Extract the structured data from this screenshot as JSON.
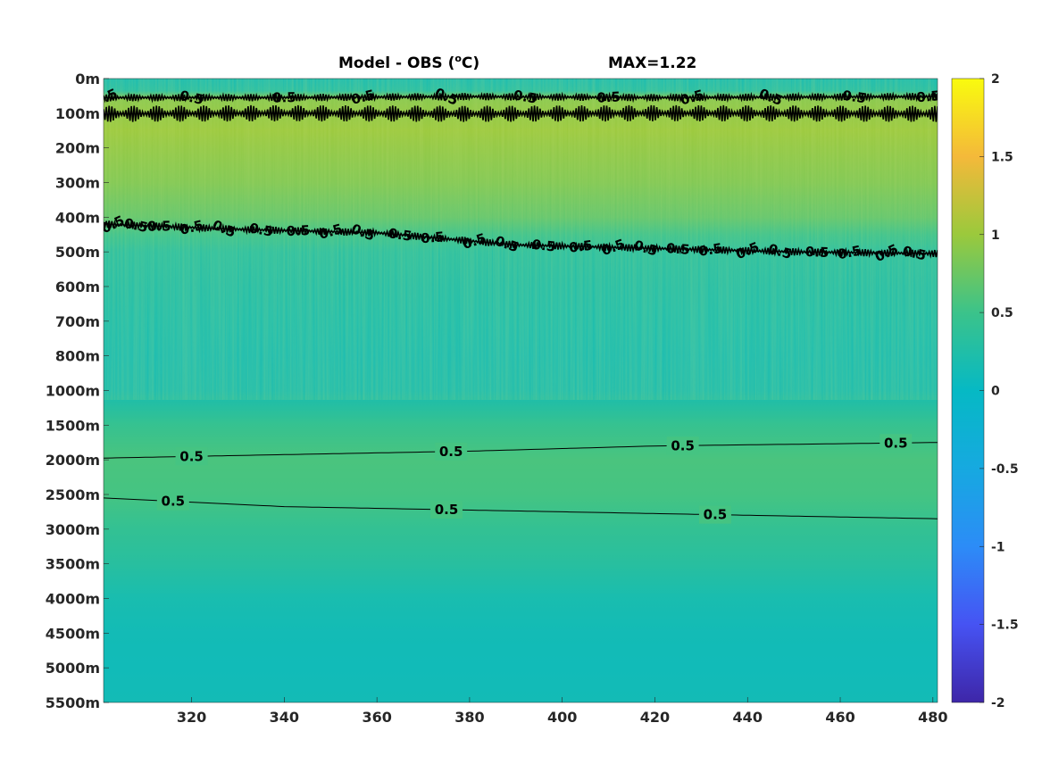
{
  "chart_data": {
    "type": "heatmap",
    "title": "Model - OBS (",
    "title_unit_sup": "o",
    "title_unit_suffix": "C)",
    "max_label": "MAX=1.22",
    "x_ticks": [
      320,
      340,
      360,
      380,
      400,
      420,
      440,
      460,
      480
    ],
    "xlim": [
      301,
      481
    ],
    "y_tick_labels": [
      "0m",
      "100m",
      "200m",
      "300m",
      "400m",
      "500m",
      "600m",
      "700m",
      "800m",
      "1000m",
      "1500m",
      "2000m",
      "2500m",
      "3000m",
      "3500m",
      "4000m",
      "4500m",
      "5000m",
      "5500m"
    ],
    "colorbar": {
      "ticks": [
        "2",
        "1.5",
        "1",
        "0.5",
        "0",
        "-0.5",
        "-1",
        "-1.5",
        "-2"
      ],
      "clim": [
        -2,
        2
      ],
      "colormap": "parula"
    },
    "depth_profile": [
      {
        "level": 0,
        "value": 0.15
      },
      {
        "level": 0.35,
        "value": 0.25
      },
      {
        "level": 0.6,
        "value": 0.9
      },
      {
        "level": 1,
        "value": 0.95
      },
      {
        "level": 1.5,
        "value": 1.0
      },
      {
        "level": 2,
        "value": 0.95
      },
      {
        "level": 3,
        "value": 0.85
      },
      {
        "level": 4,
        "value": 0.68
      },
      {
        "level": 4.5,
        "value": 0.45
      },
      {
        "level": 5,
        "value": 0.28
      },
      {
        "level": 6,
        "value": 0.22
      },
      {
        "level": 7,
        "value": 0.18
      },
      {
        "level": 8,
        "value": 0.15
      },
      {
        "level": 9,
        "value": 0.17
      },
      {
        "level": 10,
        "value": 0.45
      },
      {
        "level": 11,
        "value": 0.58
      },
      {
        "level": 12,
        "value": 0.55
      },
      {
        "level": 13,
        "value": 0.42
      },
      {
        "level": 14,
        "value": 0.32
      },
      {
        "level": 15,
        "value": 0.18
      },
      {
        "level": 16,
        "value": 0.12
      },
      {
        "level": 17,
        "value": 0.1
      },
      {
        "level": 18,
        "value": 0.12
      }
    ],
    "contour_level": "0.5",
    "contours": [
      {
        "level": 0.5,
        "points": [
          [
            301,
            0.55
          ],
          [
            340,
            0.55
          ],
          [
            380,
            0.52
          ],
          [
            420,
            0.55
          ],
          [
            481,
            0.52
          ]
        ],
        "wiggly": true,
        "label_positions": [
          301.5,
          320,
          340,
          357,
          375,
          392,
          410,
          428,
          445,
          463,
          479
        ]
      },
      {
        "level": 0.5,
        "points": [
          [
            301,
            1.02
          ],
          [
            340,
            1.0
          ],
          [
            380,
            1.02
          ],
          [
            420,
            1.0
          ],
          [
            481,
            1.02
          ]
        ],
        "wiggly": true,
        "label_positions": []
      },
      {
        "level": 0.5,
        "points": [
          [
            301,
            4.2
          ],
          [
            330,
            4.35
          ],
          [
            360,
            4.45
          ],
          [
            390,
            4.8
          ],
          [
            420,
            4.9
          ],
          [
            450,
            5.0
          ],
          [
            481,
            5.05
          ]
        ],
        "wiggly": true,
        "label_positions": [
          303,
          308,
          313,
          320,
          327,
          335,
          343,
          350,
          357,
          365,
          372,
          381,
          388,
          396,
          404,
          411,
          418,
          425,
          432,
          440,
          447,
          455,
          462,
          470,
          476
        ]
      },
      {
        "level": 0.5,
        "points": [
          [
            301,
            10.95
          ],
          [
            340,
            10.85
          ],
          [
            380,
            10.75
          ],
          [
            420,
            10.6
          ],
          [
            481,
            10.5
          ]
        ],
        "wiggly": false,
        "label_positions": [
          320,
          376,
          426,
          472
        ]
      },
      {
        "level": 0.5,
        "points": [
          [
            301,
            12.1
          ],
          [
            340,
            12.35
          ],
          [
            380,
            12.45
          ],
          [
            420,
            12.55
          ],
          [
            481,
            12.7
          ]
        ],
        "wiggly": false,
        "label_positions": [
          316,
          375,
          433
        ]
      }
    ]
  }
}
